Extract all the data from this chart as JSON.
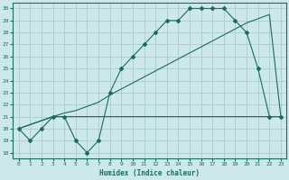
{
  "xlabel": "Humidex (Indice chaleur)",
  "ylabel": "",
  "bg_color": "#cce8e8",
  "line_color": "#1a6b60",
  "grid_color": "#aacccc",
  "xlim": [
    -0.5,
    23.5
  ],
  "ylim": [
    17.5,
    30.5
  ],
  "xticks": [
    0,
    1,
    2,
    3,
    4,
    5,
    6,
    7,
    8,
    9,
    10,
    11,
    12,
    13,
    14,
    15,
    16,
    17,
    18,
    19,
    20,
    21,
    22,
    23
  ],
  "yticks": [
    18,
    19,
    20,
    21,
    22,
    23,
    24,
    25,
    26,
    27,
    28,
    29,
    30
  ],
  "line1_x": [
    0,
    1,
    2,
    3,
    4,
    5,
    6,
    7,
    8,
    9,
    10,
    11,
    12,
    13,
    14,
    15,
    16,
    17,
    18,
    19,
    20,
    21,
    22,
    23
  ],
  "line1_y": [
    20,
    19,
    20,
    21,
    21,
    19,
    18,
    19,
    23,
    25,
    26,
    27,
    28,
    29,
    29,
    30,
    30,
    30,
    30,
    29,
    28,
    25,
    21,
    21
  ],
  "line2_x": [
    0,
    3,
    4,
    5,
    6,
    7,
    8,
    9,
    10,
    11,
    12,
    13,
    14,
    15,
    16,
    17,
    18,
    19,
    20,
    21,
    22,
    23
  ],
  "line2_y": [
    20,
    21,
    21,
    21,
    21,
    21,
    21,
    21,
    21,
    21,
    21,
    21,
    21,
    21,
    21,
    21,
    21,
    21,
    21,
    21,
    21,
    21
  ],
  "line3_x": [
    0,
    3,
    4,
    5,
    7,
    8,
    9,
    10,
    11,
    12,
    13,
    14,
    15,
    16,
    17,
    18,
    19,
    20,
    22,
    23
  ],
  "line3_y": [
    20,
    21,
    21.3,
    21.5,
    22.2,
    22.8,
    23.3,
    23.8,
    24.3,
    24.8,
    25.3,
    25.8,
    26.3,
    26.8,
    27.3,
    27.8,
    28.3,
    28.8,
    29.5,
    21
  ]
}
